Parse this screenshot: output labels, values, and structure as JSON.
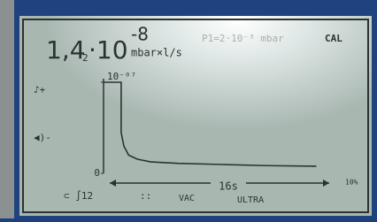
{
  "display": {
    "reading": {
      "mantissa": "1,4",
      "digit": "2",
      "base": "·10",
      "exponent": "-8",
      "unit": "mbar×l/s"
    },
    "pressure": "P1=2·10⁻³ mbar",
    "badge": "CAL",
    "side_icons": [
      "♪+",
      "◀)-"
    ],
    "footer": {
      "left": "⊂ ∫12",
      "dots": "::",
      "mode": "VAC",
      "range": "ULTRA",
      "span": "16s",
      "scale": "10%"
    },
    "trend": {
      "type": "line",
      "ylim": [
        0,
        1
      ],
      "yticks": [
        {
          "value": 0,
          "label": "0"
        },
        {
          "value": 1,
          "label": "10⁻⁰⁷"
        }
      ],
      "xlim": [
        0,
        16
      ],
      "x": [
        0,
        1.3,
        1.3,
        1.5,
        1.85,
        2.5,
        3.5,
        5.5,
        8.8,
        12,
        15.7
      ],
      "values": [
        1.0,
        1.0,
        0.45,
        0.3,
        0.2,
        0.155,
        0.126,
        0.11,
        0.097,
        0.085,
        0.078
      ],
      "color": "#2b3331"
    }
  }
}
